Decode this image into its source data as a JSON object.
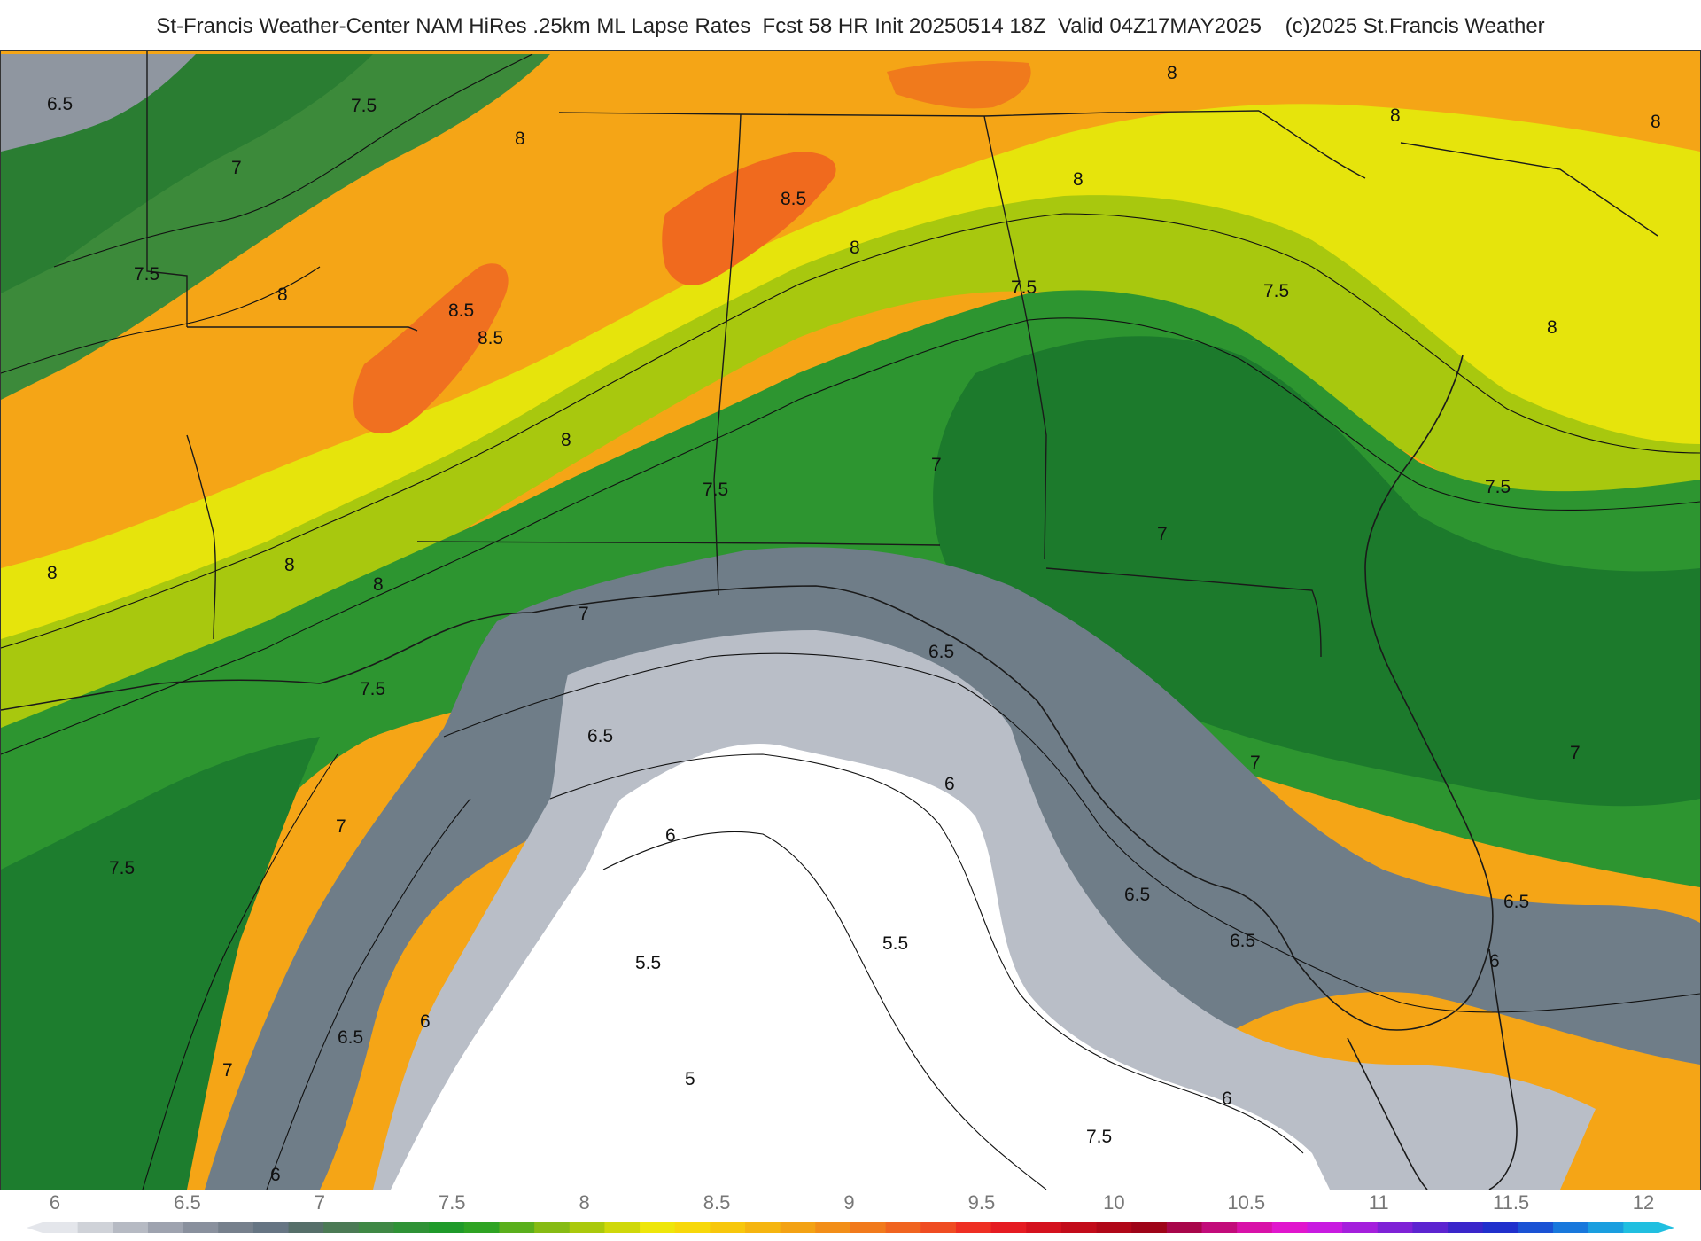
{
  "title": "St-Francis Weather-Center NAM HiRes .25km ML Lapse Rates  Fcst 58 HR Init 20250514 18Z  Valid 04Z17MAY2025    (c)2025 St.Francis Weather",
  "colorbar": {
    "ticks": [
      "6",
      "6.5",
      "7",
      "7.5",
      "8",
      "8.5",
      "9",
      "9.5",
      "10",
      "10.5",
      "11",
      "11.5",
      "12"
    ],
    "colors": [
      "#e4e6eb",
      "#cfd2d8",
      "#b6bac3",
      "#9ea3af",
      "#89909d",
      "#76808c",
      "#667583",
      "#566f6a",
      "#4b7a55",
      "#3f8845",
      "#2f9236",
      "#1f9a2a",
      "#2ea323",
      "#5aaf1c",
      "#86bb14",
      "#aac90c",
      "#cfd80a",
      "#eee60a",
      "#f7d80a",
      "#f7c70c",
      "#f5b510",
      "#f3a214",
      "#f28e18",
      "#f17a1c",
      "#f06420",
      "#ef4c22",
      "#ee2f23",
      "#e51b22",
      "#d4111e",
      "#c20b1a",
      "#b00718",
      "#9e0418",
      "#a8064a",
      "#c20b7a",
      "#d811a8",
      "#e016cd",
      "#c81be0",
      "#a41fdc",
      "#7e22d6",
      "#5c24d0",
      "#3a26ca",
      "#2030cc",
      "#1a52d4",
      "#1878dc",
      "#1a9edf",
      "#20bfe0"
    ]
  },
  "contour_labels": [
    {
      "text": "6.5"
    },
    {
      "text": "7.5"
    },
    {
      "text": "7"
    },
    {
      "text": "8"
    },
    {
      "text": "7.5"
    },
    {
      "text": "8"
    },
    {
      "text": "8.5"
    },
    {
      "text": "8.5"
    },
    {
      "text": "8"
    },
    {
      "text": "8.5"
    },
    {
      "text": "8"
    },
    {
      "text": "8"
    },
    {
      "text": "8"
    },
    {
      "text": "8"
    },
    {
      "text": "8"
    },
    {
      "text": "7.5"
    },
    {
      "text": "7.5"
    },
    {
      "text": "8"
    },
    {
      "text": "7.5"
    },
    {
      "text": "7"
    },
    {
      "text": "8"
    },
    {
      "text": "8"
    },
    {
      "text": "8"
    },
    {
      "text": "7"
    },
    {
      "text": "7"
    },
    {
      "text": "7.5"
    },
    {
      "text": "7.5"
    },
    {
      "text": "6.5"
    },
    {
      "text": "6.5"
    },
    {
      "text": "6"
    },
    {
      "text": "6"
    },
    {
      "text": "7"
    },
    {
      "text": "7.5"
    },
    {
      "text": "7"
    },
    {
      "text": "6.5"
    },
    {
      "text": "6.5"
    },
    {
      "text": "6.5"
    },
    {
      "text": "6"
    },
    {
      "text": "5.5"
    },
    {
      "text": "5.5"
    },
    {
      "text": "6"
    },
    {
      "text": "6.5"
    },
    {
      "text": "7"
    },
    {
      "text": "6"
    },
    {
      "text": "5"
    },
    {
      "text": "6"
    },
    {
      "text": "7"
    },
    {
      "text": "7.5"
    }
  ]
}
